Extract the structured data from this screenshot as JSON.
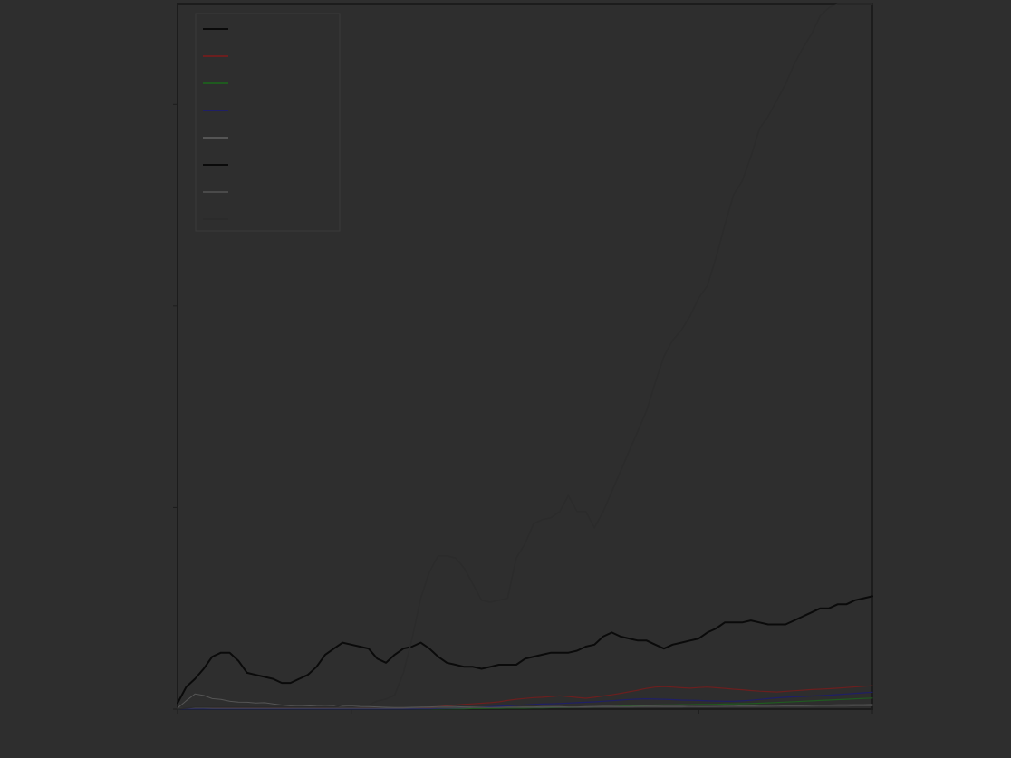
{
  "chart_data": {
    "type": "line",
    "title": "",
    "xlabel": "",
    "ylabel": "",
    "x": [
      0,
      1,
      2,
      3,
      4,
      5,
      6,
      7,
      8,
      9,
      10,
      11,
      12,
      13,
      14,
      15,
      16,
      17,
      18,
      19,
      20,
      21,
      22,
      23,
      24,
      25,
      26,
      27,
      28,
      29,
      30,
      31,
      32,
      33,
      34,
      35,
      36,
      37,
      38,
      39,
      40,
      41,
      42,
      43,
      44,
      45,
      46,
      47,
      48,
      49,
      50,
      51,
      52,
      53,
      54,
      55,
      56,
      57,
      58,
      59,
      60,
      61,
      62,
      63,
      64,
      65,
      66,
      67,
      68,
      69,
      70,
      71,
      72,
      73,
      74,
      75,
      76,
      77,
      78,
      79,
      80
    ],
    "xlim": [
      0,
      80
    ],
    "ylim": [
      0,
      350
    ],
    "legend": {
      "location": "upper-left"
    },
    "series": [
      {
        "name": "",
        "color": "#6b1f1f",
        "width": 1.2,
        "values": [
          0,
          0.4,
          0.6,
          0.7,
          0.8,
          0.7,
          0.6,
          0.5,
          0.6,
          0.5,
          0.4,
          0.4,
          0.5,
          0.4,
          0.3,
          0.3,
          0.4,
          0.4,
          0.3,
          0.3,
          0.3,
          0.4,
          0.4,
          0.3,
          0.2,
          0.3,
          0.4,
          0.5,
          0.7,
          0.8,
          1.2,
          1.6,
          2.0,
          2.4,
          2.6,
          2.9,
          3.2,
          3.6,
          4.3,
          4.9,
          5.3,
          5.7,
          5.9,
          6.2,
          6.6,
          6.2,
          5.8,
          5.4,
          5.9,
          6.5,
          7.1,
          7.8,
          8.6,
          9.4,
          10.3,
          10.9,
          11.2,
          10.9,
          10.6,
          10.4,
          10.7,
          10.9,
          10.6,
          10.3,
          9.9,
          9.6,
          9.2,
          8.9,
          8.7,
          8.5,
          8.8,
          9.1,
          9.4,
          9.7,
          9.9,
          10.1,
          10.4,
          10.7,
          11.0,
          11.3,
          11.6
        ]
      },
      {
        "name": "",
        "color": "#1f5a1f",
        "width": 1.2,
        "values": [
          0,
          0.1,
          0.1,
          0.1,
          0.1,
          0.1,
          0.1,
          0.1,
          0.1,
          0.1,
          0.1,
          0.1,
          0.1,
          0.1,
          0.1,
          0.1,
          0.1,
          0.1,
          0.1,
          0.1,
          0.1,
          0.1,
          0.1,
          0.1,
          0.1,
          0.1,
          0.1,
          0.1,
          0.1,
          0.1,
          0.1,
          0.2,
          0.2,
          0.2,
          0.3,
          0.3,
          0.4,
          0.4,
          0.5,
          0.5,
          0.5,
          0.6,
          0.6,
          0.7,
          0.8,
          0.8,
          0.9,
          1.0,
          1.1,
          1.2,
          1.3,
          1.5,
          1.6,
          1.7,
          1.9,
          2.0,
          2.1,
          2.1,
          2.2,
          2.2,
          2.3,
          2.3,
          2.4,
          2.5,
          2.6,
          2.7,
          2.8,
          2.9,
          3.1,
          3.3,
          3.5,
          3.7,
          3.9,
          4.1,
          4.3,
          4.5,
          4.7,
          4.9,
          5.1,
          5.3,
          5.5
        ]
      },
      {
        "name": "",
        "color": "#1f1f66",
        "width": 1.2,
        "values": [
          0,
          0.1,
          0.1,
          0.1,
          0.1,
          0.1,
          0.1,
          0.1,
          0.1,
          0.1,
          0.1,
          0.1,
          0.1,
          0.1,
          0.1,
          0.1,
          0.1,
          0.1,
          0.1,
          0.1,
          0.1,
          0.1,
          0.1,
          0.1,
          0.1,
          0.1,
          0.1,
          0.1,
          0.2,
          0.2,
          0.3,
          0.4,
          0.5,
          0.6,
          0.8,
          1.0,
          1.2,
          1.4,
          1.6,
          1.9,
          2.1,
          2.3,
          2.5,
          2.6,
          2.8,
          3.0,
          3.2,
          3.4,
          3.6,
          3.9,
          4.2,
          4.5,
          4.8,
          5.0,
          5.1,
          5.0,
          4.9,
          4.7,
          4.5,
          4.4,
          4.3,
          4.1,
          4.0,
          3.9,
          3.9,
          4.1,
          4.4,
          4.8,
          5.2,
          5.6,
          5.9,
          6.1,
          6.3,
          6.5,
          6.7,
          6.9,
          7.2,
          7.5,
          7.8,
          8.1,
          8.4
        ]
      },
      {
        "name": "",
        "color": "#555555",
        "width": 1.0,
        "values": [
          0.5,
          4.2,
          7.5,
          6.8,
          5.2,
          4.8,
          3.9,
          3.5,
          3.4,
          3.0,
          3.2,
          2.6,
          2.0,
          1.6,
          1.8,
          1.6,
          1.4,
          1.3,
          1.4,
          1.5,
          1.6,
          1.3,
          1.2,
          1.1,
          0.9,
          0.8,
          0.8,
          0.9,
          1.0,
          1.1,
          1.2,
          1.3,
          1.2,
          1.1,
          1.0,
          0.9,
          0.8,
          0.9,
          1.0,
          1.0,
          1.1,
          1.1,
          1.2,
          1.2,
          1.2,
          1.1,
          1.1,
          1.2,
          1.3,
          1.4,
          1.4,
          1.3,
          1.3,
          1.4,
          1.5,
          1.5,
          1.4,
          1.4,
          1.4,
          1.3,
          1.2,
          1.2,
          1.3,
          1.4,
          1.5,
          1.6,
          1.6,
          1.5,
          1.5,
          1.5,
          1.6,
          1.7,
          1.8,
          1.9,
          2.0,
          2.0,
          2.1,
          2.1,
          2.2,
          2.2,
          2.3
        ]
      },
      {
        "name": "",
        "color": "#0a0a0a",
        "width": 2.0,
        "values": [
          3,
          11,
          15,
          20,
          26,
          28,
          28,
          24,
          18,
          17,
          16,
          15,
          13,
          13,
          15,
          17,
          21,
          27,
          30,
          33,
          32,
          31,
          30,
          25,
          23,
          27,
          30,
          31,
          33,
          30,
          26,
          23,
          22,
          21,
          21,
          20,
          21,
          22,
          22,
          22,
          25,
          26,
          27,
          28,
          28,
          28,
          29,
          31,
          32,
          36,
          38,
          36,
          35,
          34,
          34,
          32,
          30,
          32,
          33,
          34,
          35,
          38,
          40,
          43,
          43,
          43,
          44,
          43,
          42,
          42,
          42,
          44,
          46,
          48,
          50,
          50,
          52,
          52,
          54,
          55,
          56
        ]
      },
      {
        "name": "",
        "color": "#4a4a4a",
        "width": 1.0,
        "values": [
          0.3,
          0.4,
          0.5,
          0.5,
          0.4,
          0.4,
          0.4,
          0.4,
          0.4,
          0.4,
          0.4,
          0.4,
          0.4,
          0.4,
          0.4,
          0.4,
          0.4,
          0.4,
          0.4,
          0.4,
          0.4,
          0.4,
          0.4,
          0.4,
          0.4,
          0.4,
          0.4,
          0.5,
          0.5,
          0.5,
          0.6,
          0.6,
          0.6,
          0.6,
          0.7,
          0.7,
          0.7,
          0.7,
          0.8,
          0.8,
          0.8,
          0.8,
          0.8,
          0.9,
          0.9,
          0.9,
          0.9,
          0.9,
          1.0,
          1.0,
          1.0,
          1.0,
          1.0,
          1.1,
          1.1,
          1.1,
          1.1,
          1.1,
          1.1,
          1.2,
          1.2,
          1.2,
          1.2,
          1.2,
          1.3,
          1.3,
          1.3,
          1.3,
          1.3,
          1.4,
          1.4,
          1.4,
          1.4,
          1.4,
          1.5,
          1.5,
          1.5,
          1.5,
          1.6,
          1.6,
          1.6
        ]
      },
      {
        "name": "",
        "color": "#2b2b2b",
        "width": 1.5,
        "values": [
          0,
          0.5,
          1,
          1,
          1,
          1,
          1,
          1,
          1,
          1,
          1,
          1,
          1,
          1,
          1,
          1,
          1,
          1,
          1,
          2,
          2,
          2,
          2,
          4,
          5,
          7,
          18,
          35,
          55,
          68,
          76,
          76,
          75,
          70,
          62,
          54,
          53,
          54,
          55,
          75,
          82,
          92,
          94,
          95,
          98,
          106,
          98,
          98,
          90,
          98,
          108,
          118,
          128,
          138,
          148,
          162,
          175,
          183,
          188,
          195,
          204,
          210,
          224,
          240,
          255,
          262,
          274,
          288,
          294,
          302,
          310,
          320,
          328,
          335,
          344,
          348,
          350,
          350,
          350,
          350,
          350
        ]
      }
    ],
    "ticks": {
      "y": [
        {
          "value": 300,
          "label": ""
        },
        {
          "value": 200,
          "label": ""
        },
        {
          "value": 100,
          "label": ""
        },
        {
          "value": 0,
          "label": ""
        }
      ],
      "x": [
        {
          "value": 0,
          "label": ""
        },
        {
          "value": 20,
          "label": ""
        },
        {
          "value": 40,
          "label": ""
        },
        {
          "value": 60,
          "label": ""
        },
        {
          "value": 80,
          "label": ""
        }
      ]
    },
    "legend_entries": [
      {
        "label": "",
        "color": "#0a0a0a"
      },
      {
        "label": "",
        "color": "#6b1f1f"
      },
      {
        "label": "",
        "color": "#1f5a1f"
      },
      {
        "label": "",
        "color": "#1f1f66"
      },
      {
        "label": "",
        "color": "#555555"
      },
      {
        "label": "",
        "color": "#0a0a0a"
      },
      {
        "label": "",
        "color": "#4a4a4a"
      },
      {
        "label": "",
        "color": "#2b2b2b"
      }
    ]
  }
}
